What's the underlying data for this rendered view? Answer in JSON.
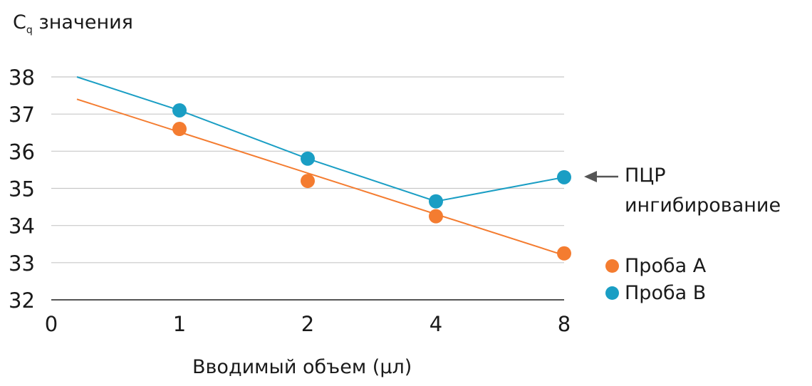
{
  "chart_data": {
    "type": "line",
    "title": "",
    "ylabel_main": "C",
    "ylabel_sub": "q",
    "ylabel_rest": " значения",
    "xlabel": "Вводимый объем (µл)",
    "x_tick_labels": [
      "0",
      "1",
      "2",
      "4",
      "8"
    ],
    "y_ticks": [
      32,
      33,
      34,
      35,
      36,
      37,
      38
    ],
    "ylim": [
      32,
      38
    ],
    "grid": true,
    "series": [
      {
        "name": "Проба A",
        "color": "#f47c30",
        "points": [
          [
            "1",
            36.6
          ],
          [
            "2",
            35.2
          ],
          [
            "4",
            34.25
          ],
          [
            "8",
            33.25
          ]
        ],
        "trend_line": [
          [
            0.2,
            37.4
          ],
          [
            4,
            33.2
          ]
        ]
      },
      {
        "name": "Проба B",
        "color": "#1a9ec4",
        "points": [
          [
            "1",
            37.1
          ],
          [
            "2",
            35.8
          ],
          [
            "4",
            34.65
          ],
          [
            "8",
            35.3
          ]
        ],
        "line_points": [
          [
            0.2,
            38.0
          ],
          [
            1,
            37.1
          ],
          [
            2,
            35.8
          ],
          [
            3,
            34.65
          ],
          [
            4,
            35.3
          ]
        ]
      }
    ],
    "annotation": {
      "line1": "ПЦР",
      "line2": "ингибирование",
      "arrow_color": "#555555"
    },
    "legend_position": "bottom-right"
  }
}
